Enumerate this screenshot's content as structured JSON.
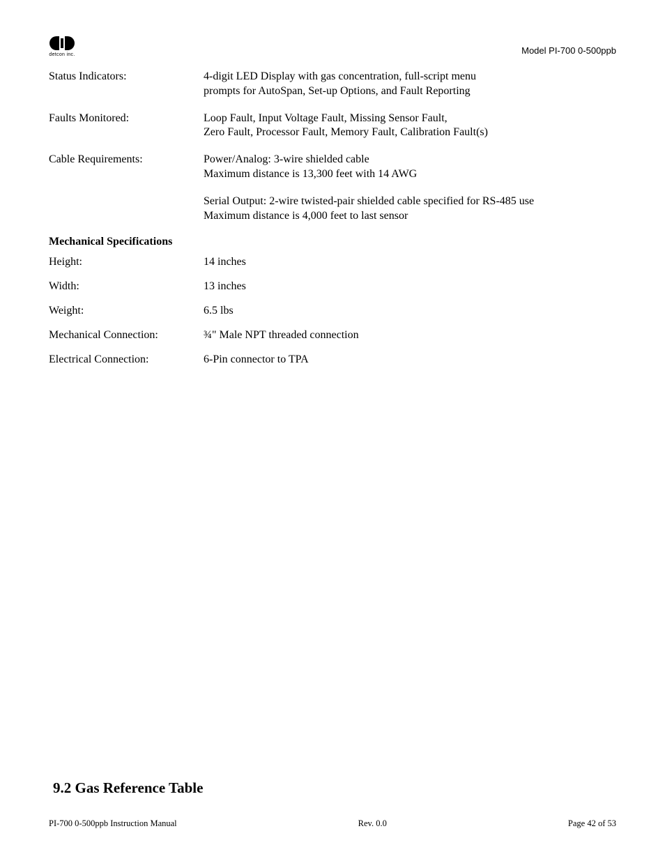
{
  "header": {
    "logo_text": "detcon inc.",
    "model": "Model PI-700 0-500ppb"
  },
  "specs": [
    {
      "label": "Status Indicators:",
      "lines": [
        "4-digit LED Display with gas concentration, full-script menu",
        "prompts for AutoSpan, Set-up Options, and Fault Reporting"
      ]
    },
    {
      "label": "Faults Monitored:",
      "lines": [
        "Loop Fault, Input Voltage Fault, Missing Sensor Fault,",
        "Zero Fault, Processor Fault, Memory Fault, Calibration Fault(s)"
      ]
    },
    {
      "label": "Cable Requirements:",
      "lines": [
        "Power/Analog: 3-wire shielded cable",
        "Maximum distance is 13,300 feet with 14 AWG"
      ]
    },
    {
      "label": "",
      "lines": [
        "Serial Output: 2-wire twisted-pair shielded cable specified for RS-485 use",
        "Maximum distance is 4,000 feet to last sensor"
      ]
    }
  ],
  "mech_heading": "Mechanical Specifications",
  "mech_specs": [
    {
      "label": "Height:",
      "value": "14 inches"
    },
    {
      "label": "Width:",
      "value": "13 inches"
    },
    {
      "label": "Weight:",
      "value": "6.5 lbs"
    },
    {
      "label": "Mechanical Connection:",
      "value": "¾\" Male NPT threaded connection"
    },
    {
      "label": "Electrical Connection:",
      "value": "6-Pin connector to TPA"
    }
  ],
  "chapter": "9.2 Gas Reference Table",
  "footer": {
    "left": "PI-700 0-500ppb Instruction Manual",
    "center": "Rev. 0.0",
    "right": "Page 42 of 53"
  }
}
